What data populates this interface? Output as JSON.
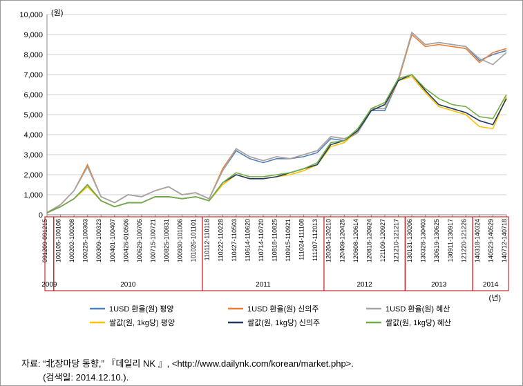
{
  "chart": {
    "type": "line",
    "ylabel": "(원)",
    "xlabel": "(년)",
    "ylim": [
      0,
      10000
    ],
    "ytick_step": 1000,
    "yticks": [
      0,
      1000,
      2000,
      3000,
      4000,
      5000,
      6000,
      7000,
      8000,
      9000,
      10000
    ],
    "grid_color": "#d0d0d0",
    "background_color": "#ffffff",
    "year_border_color": "#c00000",
    "line_width": 1.6,
    "x_categories": [
      "091209-091215",
      "100105-100106",
      "100202-100208",
      "100225-100303",
      "100309-100323",
      "100401-100407",
      "100426-010506",
      "100629-100705",
      "100715-100721",
      "100825-100831",
      "100930-101006",
      "101026-101101",
      "110112-110118",
      "110222-110228",
      "110427-110503",
      "110614-110620",
      "110714-110720",
      "110818-110825",
      "110915-110921",
      "111024-111108",
      "111207-112013",
      "120204-120210",
      "120409-120425",
      "120608-120614",
      "120818-120924",
      "121109-120927",
      "121210-121217",
      "130131-130206",
      "130328-130403",
      "130619-130625",
      "130911-130917",
      "121220-121226",
      "140318-140324",
      "140523-140529",
      "140712-140718"
    ],
    "year_groups": [
      {
        "label": "2009",
        "start": 0,
        "end": 0
      },
      {
        "label": "2010",
        "start": 1,
        "end": 11
      },
      {
        "label": "2011",
        "start": 12,
        "end": 20
      },
      {
        "label": "2012",
        "start": 21,
        "end": 26
      },
      {
        "label": "2013",
        "start": 27,
        "end": 31
      },
      {
        "label": "2014",
        "start": 32,
        "end": 34
      }
    ],
    "series": [
      {
        "name": "1USD 환율(원) 평양",
        "color": "#4f81bd",
        "values": [
          100,
          500,
          1200,
          2400,
          900,
          600,
          1000,
          900,
          1200,
          1400,
          1000,
          1100,
          800,
          2200,
          3200,
          2800,
          2600,
          2800,
          2800,
          2900,
          3100,
          3800,
          3700,
          4100,
          5200,
          5200,
          6700,
          9100,
          8500,
          8600,
          8500,
          8400,
          7700,
          8000,
          8200
        ]
      },
      {
        "name": "1USD 환율(원) 신의주",
        "color": "#ed7d31",
        "values": [
          100,
          500,
          1200,
          2500,
          900,
          600,
          1000,
          900,
          1200,
          1400,
          1000,
          1100,
          800,
          2300,
          3300,
          2900,
          2700,
          2900,
          2800,
          3000,
          3200,
          3900,
          3800,
          4100,
          5300,
          5300,
          6700,
          9000,
          8400,
          8500,
          8400,
          8300,
          7600,
          8100,
          8300
        ]
      },
      {
        "name": "1USD 환율(원) 혜산",
        "color": "#a5a5a5",
        "values": [
          100,
          500,
          1200,
          2400,
          900,
          600,
          1000,
          900,
          1200,
          1400,
          1000,
          1100,
          800,
          2200,
          3300,
          2900,
          2700,
          2900,
          2800,
          3000,
          3200,
          3900,
          3800,
          4100,
          5300,
          5300,
          6800,
          9100,
          8500,
          8600,
          8500,
          8400,
          7800,
          7500,
          8100
        ]
      },
      {
        "name": "쌀값(원, 1kg당) 평양",
        "color": "#ffc000",
        "values": [
          100,
          400,
          800,
          1400,
          700,
          400,
          600,
          600,
          900,
          900,
          800,
          900,
          700,
          1500,
          2000,
          1800,
          1800,
          1900,
          2000,
          2200,
          2500,
          3400,
          3600,
          4200,
          5200,
          5500,
          6700,
          6900,
          6100,
          5400,
          5200,
          5000,
          4400,
          4300,
          5900
        ]
      },
      {
        "name": "쌀값(원, 1kg당) 신의주",
        "color": "#1f3864",
        "values": [
          100,
          400,
          800,
          1500,
          700,
          400,
          600,
          600,
          900,
          900,
          800,
          900,
          700,
          1600,
          2000,
          1800,
          1800,
          1900,
          2100,
          2300,
          2500,
          3500,
          3700,
          4200,
          5200,
          5500,
          6700,
          7000,
          6200,
          5500,
          5300,
          5100,
          4700,
          4500,
          5800
        ]
      },
      {
        "name": "쌀값(원, 1kg당) 혜산",
        "color": "#70ad47",
        "values": [
          100,
          400,
          800,
          1500,
          700,
          400,
          600,
          600,
          900,
          900,
          800,
          900,
          700,
          1600,
          2100,
          1900,
          1900,
          2000,
          2100,
          2300,
          2600,
          3600,
          3700,
          4300,
          5300,
          5600,
          6800,
          7000,
          6300,
          5800,
          5500,
          5400,
          4900,
          4800,
          6000
        ]
      }
    ]
  },
  "caption": {
    "line1_prefix": "자료: ",
    "line1_quote": "“北장마당 동향,”",
    "line1_source": "『데일리 NK 』, ",
    "line1_url": "<http://www.dailynk.com/korean/market.php>.",
    "line2": "(검색일:  2014.12.10.)."
  }
}
